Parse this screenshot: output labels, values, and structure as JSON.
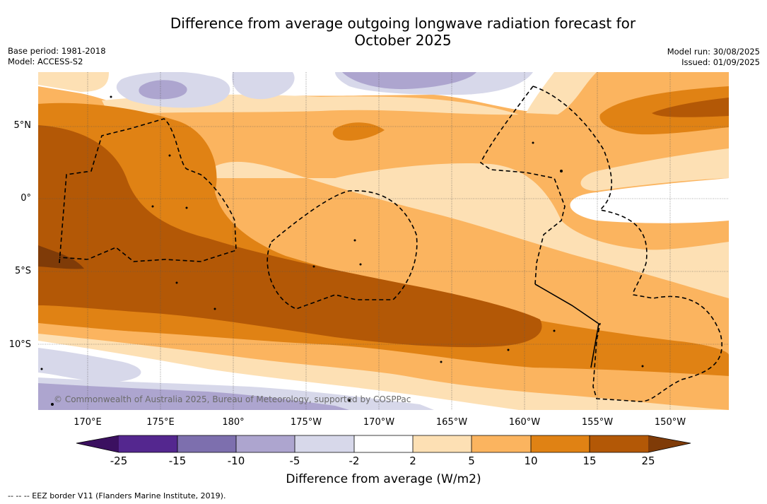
{
  "title_line1": "Difference from average outgoing longwave radiation forecast for",
  "title_line2": "October 2025",
  "base_period": "Base period: 1981-2018",
  "model": "Model: ACCESS-S2",
  "model_run": "Model run: 30/08/2025",
  "issued": "Issued: 01/09/2025",
  "watermark": "© Commonwealth of Australia 2025, Bureau of Meteorology, supported by COSPPac",
  "lat_labels": [
    "5°N",
    "0°",
    "5°S",
    "10°S"
  ],
  "lon_labels": [
    "170°E",
    "175°E",
    "180°",
    "175°W",
    "170°W",
    "165°W",
    "160°W",
    "155°W",
    "150°W"
  ],
  "colorbar": {
    "ticks": [
      "-25",
      "-15",
      "-10",
      "-5",
      "-2",
      "2",
      "5",
      "10",
      "15",
      "25"
    ],
    "colors": [
      "#3b1060",
      "#54278f",
      "#7d6fae",
      "#ada5cf",
      "#d7d8ea",
      "#ffffff",
      "#fde0b4",
      "#fbb45f",
      "#e08214",
      "#b35806",
      "#7f3b08"
    ],
    "label": "Difference from average (W/m2)"
  },
  "footer": "--  --  -- EEZ border V11 (Flanders Marine Institute, 2019)."
}
